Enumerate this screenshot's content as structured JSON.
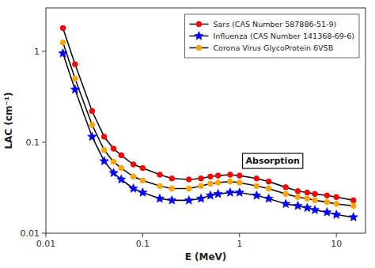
{
  "chart_data": {
    "type": "line",
    "xlabel": "E (MeV)",
    "ylabel": "LAC (cm⁻¹)",
    "log": true,
    "grid": false,
    "legend": "upper right",
    "xlim": [
      0.01,
      20
    ],
    "ylim": [
      0.01,
      3.0
    ],
    "xticks": [
      0.01,
      0.1,
      1,
      10
    ],
    "yticks": [
      0.01,
      0.1,
      1
    ],
    "annotations": [
      {
        "text": "Absorption",
        "x": 2.2,
        "y": 0.063
      }
    ],
    "x": [
      0.015,
      0.02,
      0.03,
      0.04,
      0.05,
      0.06,
      0.08,
      0.1,
      0.15,
      0.2,
      0.3,
      0.4,
      0.5,
      0.6,
      0.8,
      1.0,
      1.5,
      2.0,
      3.0,
      4.0,
      5.0,
      6.0,
      8.0,
      10.0,
      15.0
    ],
    "series": [
      {
        "name": "Sars (CAS Number 587886-51-9)",
        "color": "red",
        "marker": "circle",
        "values": [
          1.8,
          0.72,
          0.22,
          0.115,
          0.085,
          0.072,
          0.057,
          0.052,
          0.044,
          0.04,
          0.039,
          0.04,
          0.042,
          0.043,
          0.044,
          0.043,
          0.04,
          0.037,
          0.032,
          0.029,
          0.028,
          0.027,
          0.026,
          0.025,
          0.023
        ]
      },
      {
        "name": "Influenza (CAS Number 141368-69-6)",
        "color": "blue",
        "marker": "star",
        "values": [
          0.95,
          0.38,
          0.115,
          0.062,
          0.046,
          0.039,
          0.031,
          0.028,
          0.024,
          0.023,
          0.023,
          0.024,
          0.026,
          0.027,
          0.028,
          0.028,
          0.026,
          0.024,
          0.021,
          0.02,
          0.019,
          0.018,
          0.017,
          0.016,
          0.015
        ]
      },
      {
        "name": "Corona Virus GlycoProtein 6VSB",
        "color": "orange",
        "marker": "circle",
        "values": [
          1.25,
          0.5,
          0.155,
          0.082,
          0.061,
          0.052,
          0.042,
          0.038,
          0.033,
          0.031,
          0.031,
          0.033,
          0.035,
          0.036,
          0.037,
          0.036,
          0.033,
          0.031,
          0.027,
          0.025,
          0.024,
          0.023,
          0.022,
          0.021,
          0.02
        ]
      }
    ]
  }
}
